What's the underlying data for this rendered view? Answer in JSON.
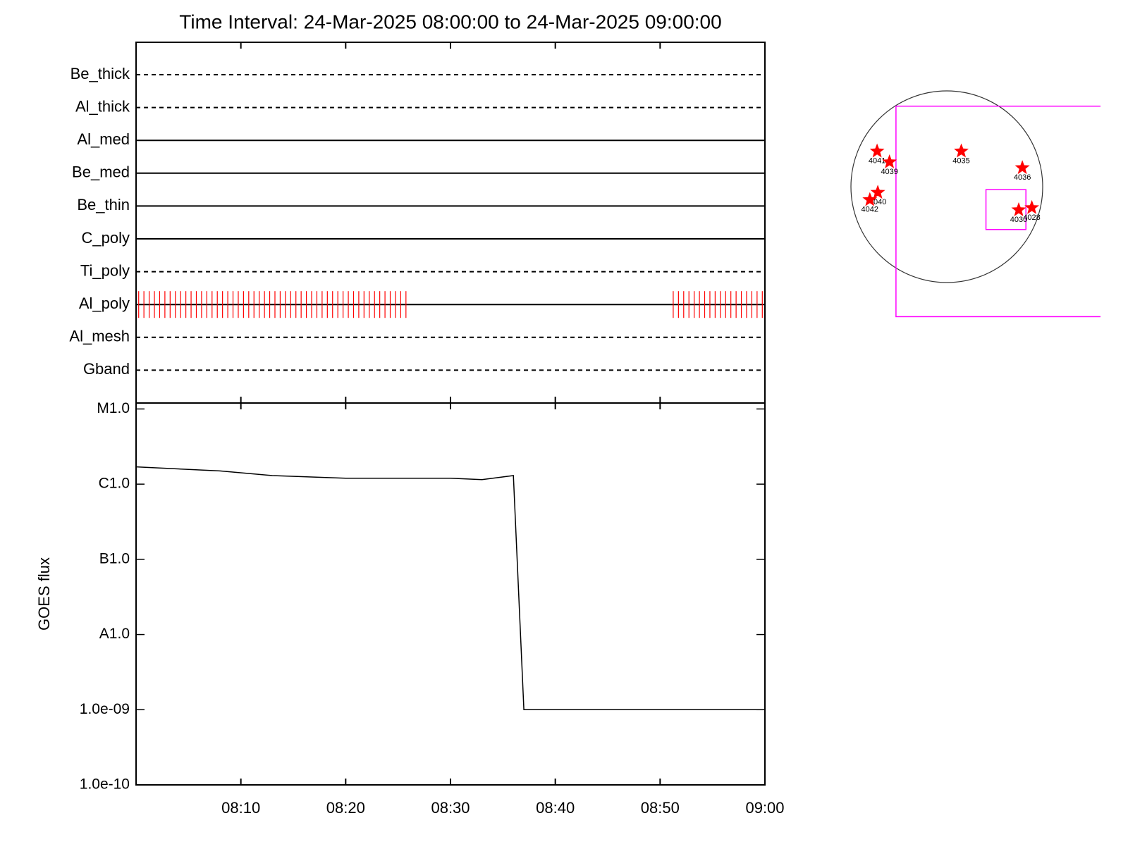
{
  "chart_data": [
    {
      "type": "timeline",
      "title": "Time Interval: 24-Mar-2025 08:00:00 to 24-Mar-2025 09:00:00",
      "xlim": [
        0,
        60
      ],
      "mark_color": "#ff0000",
      "filters": [
        {
          "name": "Be_thick",
          "style": "dashed",
          "times": []
        },
        {
          "name": "Al_thick",
          "style": "dashed",
          "times": []
        },
        {
          "name": "Al_med",
          "style": "solid",
          "times": []
        },
        {
          "name": "Be_med",
          "style": "solid",
          "times": []
        },
        {
          "name": "Be_thin",
          "style": "solid",
          "times": []
        },
        {
          "name": "C_poly",
          "style": "solid",
          "times": []
        },
        {
          "name": "Ti_poly",
          "style": "dashed",
          "times": []
        },
        {
          "name": "Al_poly",
          "style": "solid",
          "times": [
            0.25,
            0.75,
            1.25,
            1.75,
            2.25,
            2.75,
            3.25,
            3.75,
            4.25,
            4.75,
            5.25,
            5.75,
            6.25,
            6.75,
            7.25,
            7.75,
            8.25,
            8.75,
            9.25,
            9.75,
            10.25,
            10.75,
            11.25,
            11.75,
            12.25,
            12.75,
            13.25,
            13.75,
            14.25,
            14.75,
            15.25,
            15.75,
            16.25,
            16.75,
            17.25,
            17.75,
            18.25,
            18.75,
            19.25,
            19.75,
            20.25,
            20.75,
            21.25,
            21.75,
            22.25,
            22.75,
            23.25,
            23.75,
            24.25,
            24.75,
            25.25,
            25.75,
            51.25,
            51.75,
            52.25,
            52.75,
            53.25,
            53.75,
            54.25,
            54.75,
            55.25,
            55.75,
            56.25,
            56.75,
            57.25,
            57.75,
            58.25,
            58.75,
            59.25,
            59.75
          ]
        },
        {
          "name": "Al_mesh",
          "style": "dashed",
          "times": []
        },
        {
          "name": "Gband",
          "style": "dashed",
          "times": []
        }
      ]
    },
    {
      "type": "line",
      "y_label": "GOES flux",
      "x": [
        0,
        8,
        13,
        20,
        30,
        33,
        36,
        37,
        60
      ],
      "values": [
        1.7e-06,
        1.5e-06,
        1.3e-06,
        1.2e-06,
        1.2e-06,
        1.15e-06,
        1.3e-06,
        1e-09,
        1e-09
      ],
      "color": "#000000",
      "log_y": true,
      "xlim": [
        0,
        60
      ],
      "ylim": [
        1e-10,
        1.2e-05
      ],
      "xticks": [
        {
          "value": 10,
          "label": "08:10"
        },
        {
          "value": 20,
          "label": "08:20"
        },
        {
          "value": 30,
          "label": "08:30"
        },
        {
          "value": 40,
          "label": "08:40"
        },
        {
          "value": 50,
          "label": "08:50"
        },
        {
          "value": 60,
          "label": "09:00"
        }
      ],
      "yticks": [
        {
          "value": 1e-10,
          "label": "1.0e-10"
        },
        {
          "value": 1e-09,
          "label": "1.0e-09"
        },
        {
          "value": 1e-08,
          "label": "A1.0"
        },
        {
          "value": 1e-07,
          "label": "B1.0"
        },
        {
          "value": 1e-06,
          "label": "C1.0"
        },
        {
          "value": 1e-05,
          "label": "M1.0"
        }
      ]
    },
    {
      "type": "solar_map",
      "solar_radius": 960,
      "disk_color": "#333333",
      "star_color": "#ff0000",
      "box_color": "#ff00ff",
      "labels": [
        "4041",
        "4039",
        "4035",
        "4036",
        "4040",
        "4042",
        "4030",
        "4028"
      ],
      "x": [
        -698,
        -574,
        145,
        756,
        -691,
        -771,
        720,
        851
      ],
      "y": [
        356,
        247,
        356,
        189,
        -58,
        -131,
        -233,
        -211
      ],
      "boxes": [
        {
          "x": [
            -509,
            1600
          ],
          "y": [
            -1302,
            807
          ]
        },
        {
          "x": [
            392,
            792
          ],
          "y": [
            -429,
            -29
          ]
        }
      ]
    }
  ]
}
